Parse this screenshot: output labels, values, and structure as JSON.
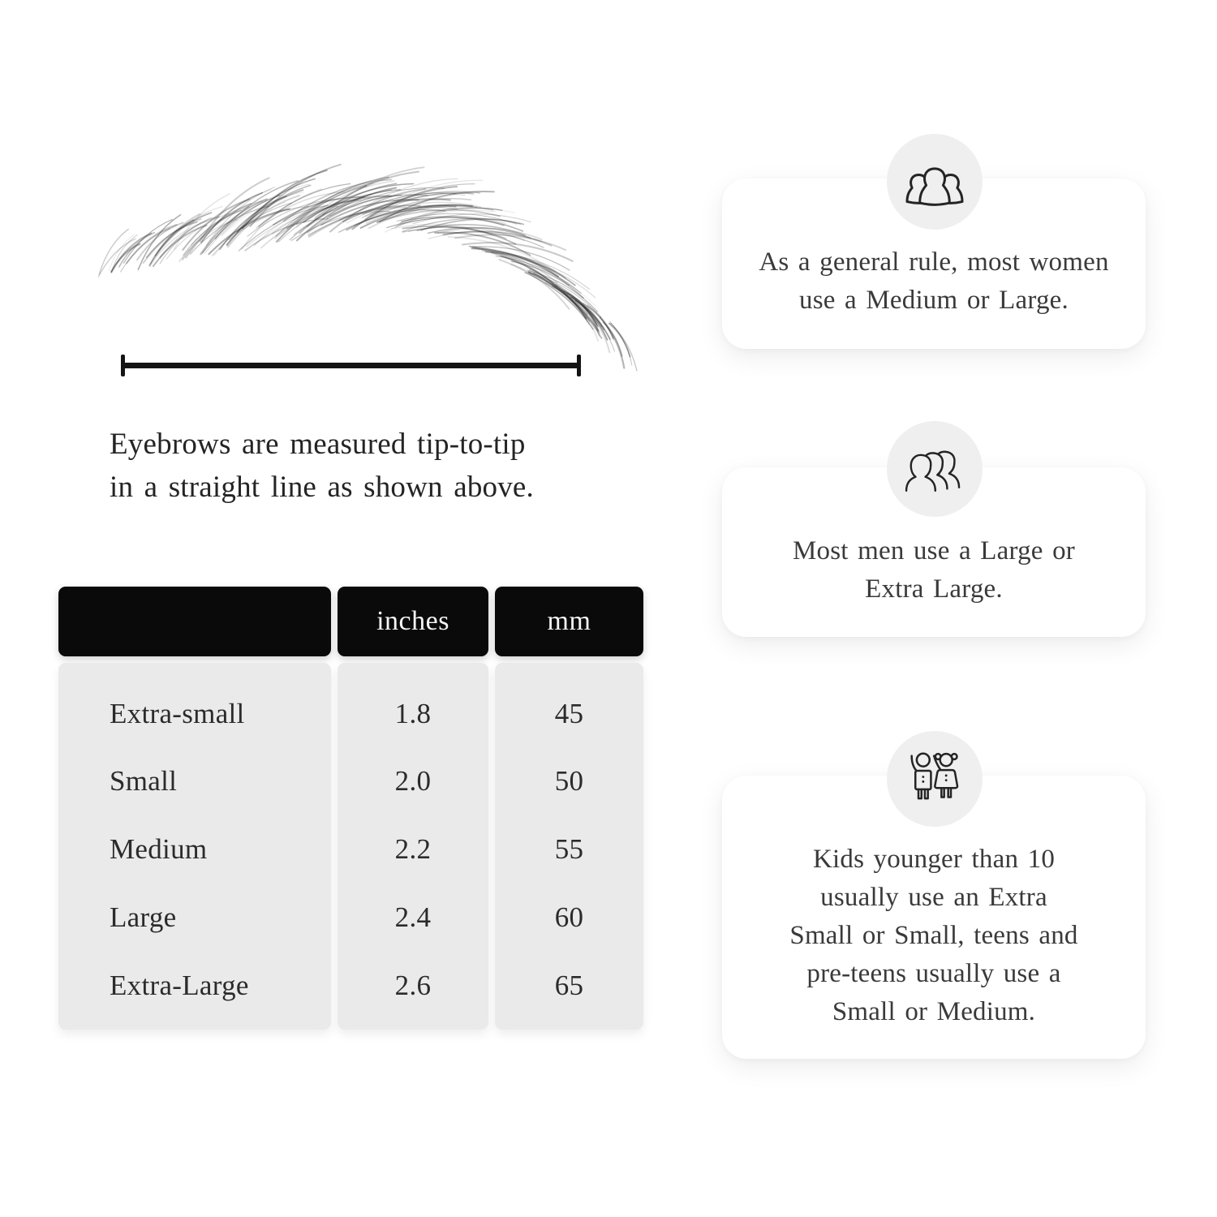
{
  "page": {
    "background": "#ffffff",
    "table_header_bg": "#0a0a0a",
    "table_body_bg": "#eaeaea",
    "card_bg": "#ffffff",
    "circle_bg": "#efefef"
  },
  "measure": {
    "caption_line1": "Eyebrows are measured tip-to-tip",
    "caption_line2": "in a straight line as shown above."
  },
  "size_table": {
    "columns": [
      "",
      "inches",
      "mm"
    ],
    "rows": [
      {
        "label": "Extra-small",
        "inches": "1.8",
        "mm": "45"
      },
      {
        "label": "Small",
        "inches": "2.0",
        "mm": "50"
      },
      {
        "label": "Medium",
        "inches": "2.2",
        "mm": "55"
      },
      {
        "label": "Large",
        "inches": "2.4",
        "mm": "60"
      },
      {
        "label": "Extra-Large",
        "inches": "2.6",
        "mm": "65"
      }
    ]
  },
  "cards": [
    {
      "icon": "women-group-icon",
      "lines": [
        "As a general rule, most women",
        "use a Medium or Large."
      ]
    },
    {
      "icon": "men-group-icon",
      "lines": [
        "Most men use a Large or",
        "Extra Large."
      ]
    },
    {
      "icon": "kids-icon",
      "lines": [
        "Kids younger than 10",
        "usually use an Extra",
        "Small or Small, teens and",
        "pre-teens usually use a",
        "Small or Medium."
      ]
    }
  ]
}
